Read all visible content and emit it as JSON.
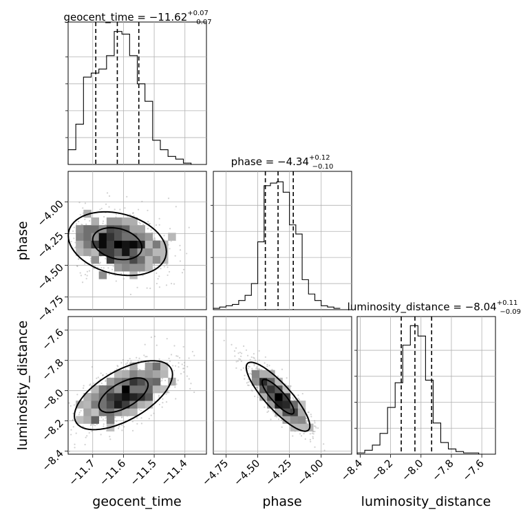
{
  "chart_data": {
    "type": "corner",
    "grid": true,
    "parameters": [
      "geocent_time",
      "phase",
      "luminosity_distance"
    ],
    "axis_labels": {
      "geocent_time": "geocent_time",
      "phase": "phase",
      "luminosity_distance": "luminosity_distance"
    },
    "ranges": {
      "geocent_time": [
        -11.78,
        -11.33
      ],
      "phase": [
        -4.85,
        -3.76
      ],
      "luminosity_distance": [
        -8.42,
        -7.51
      ]
    },
    "ticks": {
      "geocent_time": [
        {
          "v": -11.7,
          "label": "−11.7"
        },
        {
          "v": -11.6,
          "label": "−11.6"
        },
        {
          "v": -11.5,
          "label": "−11.5"
        },
        {
          "v": -11.4,
          "label": "−11.4"
        }
      ],
      "phase": [
        {
          "v": -4.75,
          "label": "−4.75"
        },
        {
          "v": -4.5,
          "label": "−4.50"
        },
        {
          "v": -4.25,
          "label": "−4.25"
        },
        {
          "v": -4.0,
          "label": "−4.00"
        }
      ],
      "luminosity_distance": [
        {
          "v": -8.4,
          "label": "−8.4"
        },
        {
          "v": -8.2,
          "label": "−8.2"
        },
        {
          "v": -8.0,
          "label": "−8.0"
        },
        {
          "v": -7.8,
          "label": "−7.8"
        },
        {
          "v": -7.6,
          "label": "−7.6"
        }
      ]
    },
    "titles": {
      "geocent_time": {
        "label": "geocent_time",
        "median": "−11.62",
        "plus": "+0.07",
        "minus": "−0.07"
      },
      "phase": {
        "label": "phase",
        "median": "−4.34",
        "plus": "+0.12",
        "minus": "−0.10"
      },
      "luminosity_distance": {
        "label": "luminosity_distance",
        "median": "−8.04",
        "plus": "+0.11",
        "minus": "−0.09"
      }
    },
    "quantiles": {
      "geocent_time": [
        -11.69,
        -11.62,
        -11.55
      ],
      "phase": [
        -4.44,
        -4.34,
        -4.22
      ],
      "luminosity_distance": [
        -8.13,
        -8.04,
        -7.93
      ]
    },
    "histograms": {
      "geocent_time": {
        "edges": [
          -11.78,
          -11.755,
          -11.73,
          -11.705,
          -11.68,
          -11.655,
          -11.63,
          -11.605,
          -11.58,
          -11.555,
          -11.53,
          -11.505,
          -11.48,
          -11.455,
          -11.43,
          -11.405,
          -11.38,
          -11.355
        ],
        "counts": [
          0.11,
          0.3,
          0.65,
          0.68,
          0.71,
          0.81,
          0.99,
          0.97,
          0.81,
          0.6,
          0.47,
          0.18,
          0.11,
          0.06,
          0.04,
          0.01,
          0
        ]
      },
      "phase": {
        "edges": [
          -4.85,
          -4.8,
          -4.75,
          -4.7,
          -4.65,
          -4.6,
          -4.55,
          -4.5,
          -4.45,
          -4.4,
          -4.35,
          -4.3,
          -4.25,
          -4.2,
          -4.15,
          -4.1,
          -4.05,
          -4.0,
          -3.95,
          -3.9,
          -3.85
        ],
        "counts": [
          0.01,
          0.02,
          0.03,
          0.04,
          0.07,
          0.11,
          0.2,
          0.52,
          0.95,
          0.97,
          0.98,
          0.9,
          0.65,
          0.58,
          0.23,
          0.12,
          0.07,
          0.03,
          0.02,
          0.01
        ]
      },
      "luminosity_distance": {
        "edges": [
          -8.42,
          -8.37,
          -8.32,
          -8.27,
          -8.22,
          -8.17,
          -8.12,
          -8.07,
          -8.02,
          -7.97,
          -7.92,
          -7.87,
          -7.82,
          -7.77,
          -7.72,
          -7.67,
          -7.62,
          -7.57
        ],
        "counts": [
          0.01,
          0.03,
          0.07,
          0.16,
          0.36,
          0.55,
          0.84,
          0.99,
          0.91,
          0.57,
          0.24,
          0.09,
          0.04,
          0.02,
          0.01,
          0.01,
          0
        ]
      }
    },
    "joint": {
      "phase_vs_geocent_time": {
        "mean": [
          -11.62,
          -4.33
        ],
        "sd": [
          0.07,
          0.11
        ],
        "corr": -0.25
      },
      "luminosity_distance_vs_geocent_time": {
        "mean": [
          -11.6,
          -8.03
        ],
        "sd": [
          0.07,
          0.1
        ],
        "corr": 0.6
      },
      "luminosity_distance_vs_phase": {
        "mean": [
          -4.34,
          -8.04
        ],
        "sd": [
          0.11,
          0.1
        ],
        "corr": -0.85
      }
    },
    "contour_levels": [
      0.39,
      0.86
    ]
  }
}
